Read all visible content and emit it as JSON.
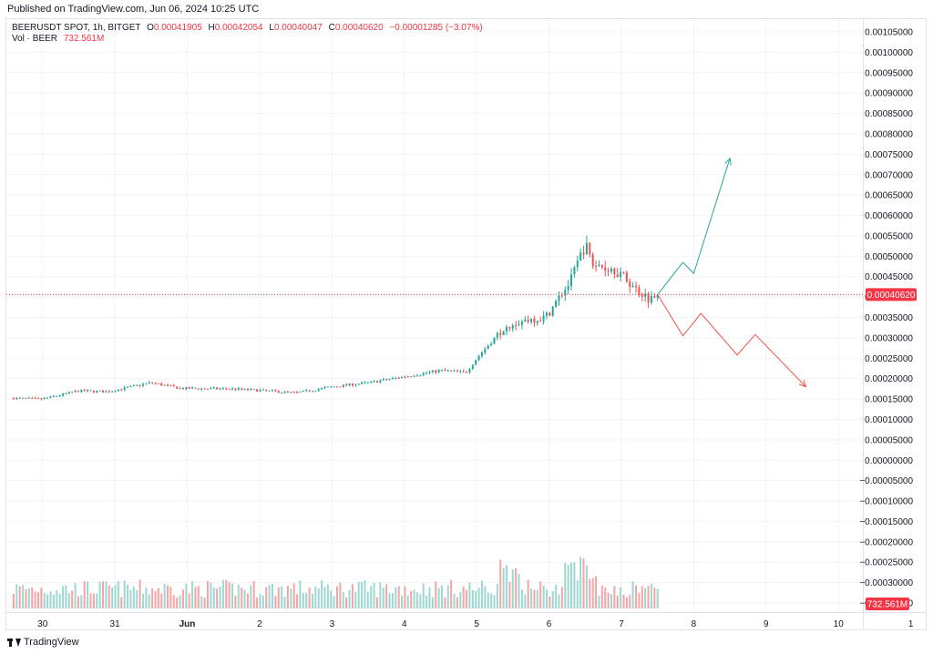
{
  "header": {
    "published": "Published on TradingView.com, Jun 06, 2024 10:25 UTC"
  },
  "legend": {
    "symbol": "BEERUSDT SPOT, 1h, BITGET",
    "o_label": "O",
    "o_value": "0.00041905",
    "h_label": "H",
    "h_value": "0.00042054",
    "l_label": "L",
    "l_value": "0.00040047",
    "c_label": "C",
    "c_value": "0.00040620",
    "change": "−0.00001285 (−3.07%)",
    "vol_label": "Vol · BEER",
    "vol_value": "732.561M"
  },
  "footer": {
    "brand": "TradingView"
  },
  "chart_data": {
    "type": "candlestick",
    "price_axis": {
      "labels": [
        "0.00105000",
        "0.00100000",
        "0.00095000",
        "0.00090000",
        "0.00085000",
        "0.00080000",
        "0.00075000",
        "0.00070000",
        "0.00065000",
        "0.00060000",
        "0.00055000",
        "0.00050000",
        "0.00045000",
        "0.00040000",
        "0.00035000",
        "0.00030000",
        "0.00025000",
        "0.00020000",
        "0.00015000",
        "0.00010000",
        "0.00005000",
        "0.00000000",
        "−0.00005000",
        "−0.00010000",
        "−0.00015000",
        "−0.00020000",
        "−0.00025000",
        "−0.00030000",
        "−0.00035000"
      ],
      "range": [
        -0.00035,
        0.00105
      ]
    },
    "time_axis": {
      "labels": [
        "30",
        "31",
        "Jun",
        "2",
        "3",
        "4",
        "5",
        "6",
        "7",
        "8",
        "9",
        "10",
        "1"
      ],
      "start_day_value": 29.5,
      "end_day_value": 41.4
    },
    "last_price": {
      "value": 0.0004062,
      "label": "0.00040620"
    },
    "last_volume": {
      "label": "732.561M"
    },
    "volume_max": 1200000000,
    "anchors": [
      {
        "day": 29.6,
        "price": 0.000152
      },
      {
        "day": 30.0,
        "price": 0.00015
      },
      {
        "day": 30.5,
        "price": 0.00017
      },
      {
        "day": 30.9,
        "price": 0.000168
      },
      {
        "day": 31.5,
        "price": 0.00019
      },
      {
        "day": 31.9,
        "price": 0.000176
      },
      {
        "day": 32.6,
        "price": 0.000175
      },
      {
        "day": 33.1,
        "price": 0.00017
      },
      {
        "day": 33.5,
        "price": 0.000165
      },
      {
        "day": 34.0,
        "price": 0.00018
      },
      {
        "day": 34.5,
        "price": 0.00019
      },
      {
        "day": 35.0,
        "price": 0.000205
      },
      {
        "day": 35.5,
        "price": 0.00022
      },
      {
        "day": 35.85,
        "price": 0.000215
      },
      {
        "day": 36.0,
        "price": 0.00025
      },
      {
        "day": 36.4,
        "price": 0.00033
      },
      {
        "day": 36.7,
        "price": 0.000345
      },
      {
        "day": 36.95,
        "price": 0.00035
      },
      {
        "day": 37.3,
        "price": 0.00044
      },
      {
        "day": 37.5,
        "price": 0.00053
      },
      {
        "day": 37.6,
        "price": 0.00048
      },
      {
        "day": 37.9,
        "price": 0.00047
      },
      {
        "day": 38.2,
        "price": 0.00042
      },
      {
        "day": 38.4,
        "price": 0.000395
      },
      {
        "day": 38.5,
        "price": 0.000406
      }
    ],
    "candles_count": 210,
    "projections": [
      {
        "color": "#26a69a",
        "arrow": true,
        "points": [
          [
            38.5,
            0.000406
          ],
          [
            38.85,
            0.000485
          ],
          [
            39.0,
            0.000458
          ],
          [
            39.5,
            0.00074
          ]
        ]
      },
      {
        "color": "#ef5350",
        "arrow": true,
        "points": [
          [
            38.5,
            0.000406
          ],
          [
            38.85,
            0.000305
          ],
          [
            39.1,
            0.00036
          ],
          [
            39.6,
            0.000258
          ],
          [
            39.85,
            0.000308
          ],
          [
            40.55,
            0.00018
          ]
        ]
      }
    ],
    "colors": {
      "up": "#26a69a",
      "down": "#ef5350",
      "vol_up": "#9fd8d2",
      "vol_down": "#f4a6a6",
      "grid": "#f0f3fa",
      "last_price_line": "#f23645"
    }
  }
}
